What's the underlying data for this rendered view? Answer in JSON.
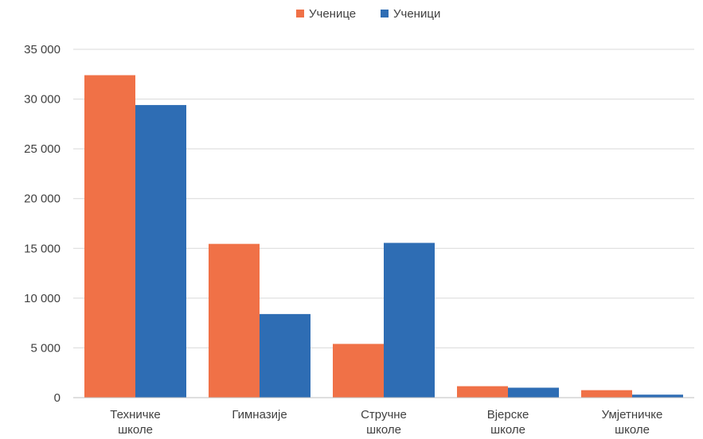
{
  "chart_data": {
    "type": "bar",
    "categories": [
      [
        "Техничке",
        "школе"
      ],
      [
        "Гимназије"
      ],
      [
        "Стручне",
        "школе"
      ],
      [
        "Вјерске",
        "школе"
      ],
      [
        "Умјетничке",
        "школе"
      ]
    ],
    "series": [
      {
        "name": "Ученице",
        "color": "#f07147",
        "values": [
          32400,
          15450,
          5400,
          1150,
          750
        ]
      },
      {
        "name": "Ученици",
        "color": "#2e6db4",
        "values": [
          29400,
          8400,
          15550,
          1000,
          300
        ]
      }
    ],
    "ylim": [
      0,
      35000
    ],
    "yticks": [
      0,
      5000,
      10000,
      15000,
      20000,
      25000,
      30000,
      35000
    ],
    "ytick_labels": [
      "0",
      "5 000",
      "10 000",
      "15 000",
      "20 000",
      "25 000",
      "30 000",
      "35 000"
    ],
    "grid": true,
    "legend_position": "top-center"
  }
}
